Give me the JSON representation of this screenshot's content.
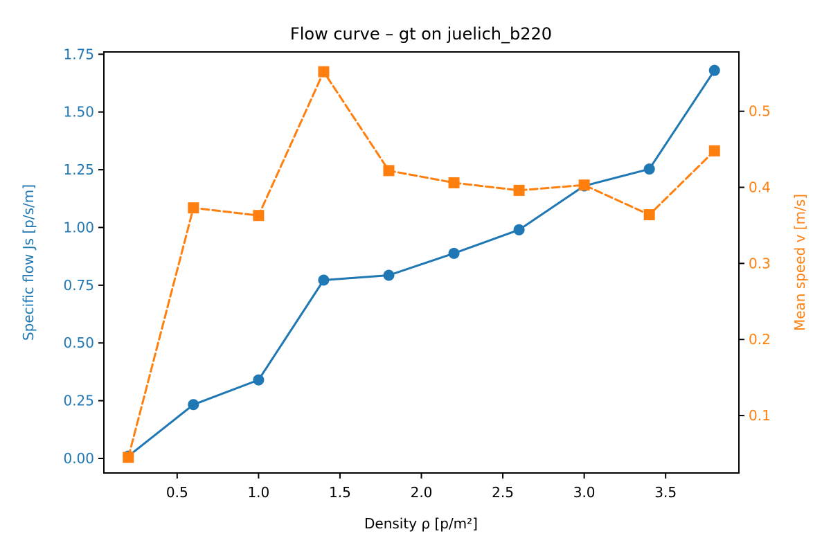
{
  "chart_data": {
    "type": "line",
    "title": "Flow curve – gt on juelich_b220",
    "xlabel": "Density ρ [p/m²]",
    "ylabel_left": "Specific flow Js [p/s/m]",
    "ylabel_right": "Mean speed v [m/s]",
    "xlim": [
      0.05,
      3.95
    ],
    "ylim_left": [
      -0.063,
      1.76
    ],
    "ylim_right": [
      0.0245,
      0.578
    ],
    "x_ticks": [
      0.5,
      1.0,
      1.5,
      2.0,
      2.5,
      3.0,
      3.5
    ],
    "x_tick_labels": [
      "0.5",
      "1.0",
      "1.5",
      "2.0",
      "2.5",
      "3.0",
      "3.5"
    ],
    "y_left_ticks": [
      0.0,
      0.25,
      0.5,
      0.75,
      1.0,
      1.25,
      1.5,
      1.75
    ],
    "y_left_tick_labels": [
      "0.00",
      "0.25",
      "0.50",
      "0.75",
      "1.00",
      "1.25",
      "1.50",
      "1.75"
    ],
    "y_right_ticks": [
      0.1,
      0.2,
      0.3,
      0.4,
      0.5
    ],
    "y_right_tick_labels": [
      "0.1",
      "0.2",
      "0.3",
      "0.4",
      "0.5"
    ],
    "grid": false,
    "x": [
      0.2,
      0.6,
      1.0,
      1.4,
      1.8,
      2.2,
      2.6,
      3.0,
      3.4,
      3.8
    ],
    "series": [
      {
        "axis": "left",
        "marker": "circle",
        "line_style": "solid",
        "color": "#1f77b4",
        "values": [
          0.01,
          0.233,
          0.34,
          0.772,
          0.793,
          0.888,
          0.99,
          1.18,
          1.253,
          1.68
        ]
      },
      {
        "axis": "right",
        "marker": "square",
        "line_style": "dashed",
        "color": "#ff7f0e",
        "values": [
          0.045,
          0.373,
          0.363,
          0.552,
          0.422,
          0.406,
          0.396,
          0.403,
          0.364,
          0.448
        ]
      }
    ]
  }
}
